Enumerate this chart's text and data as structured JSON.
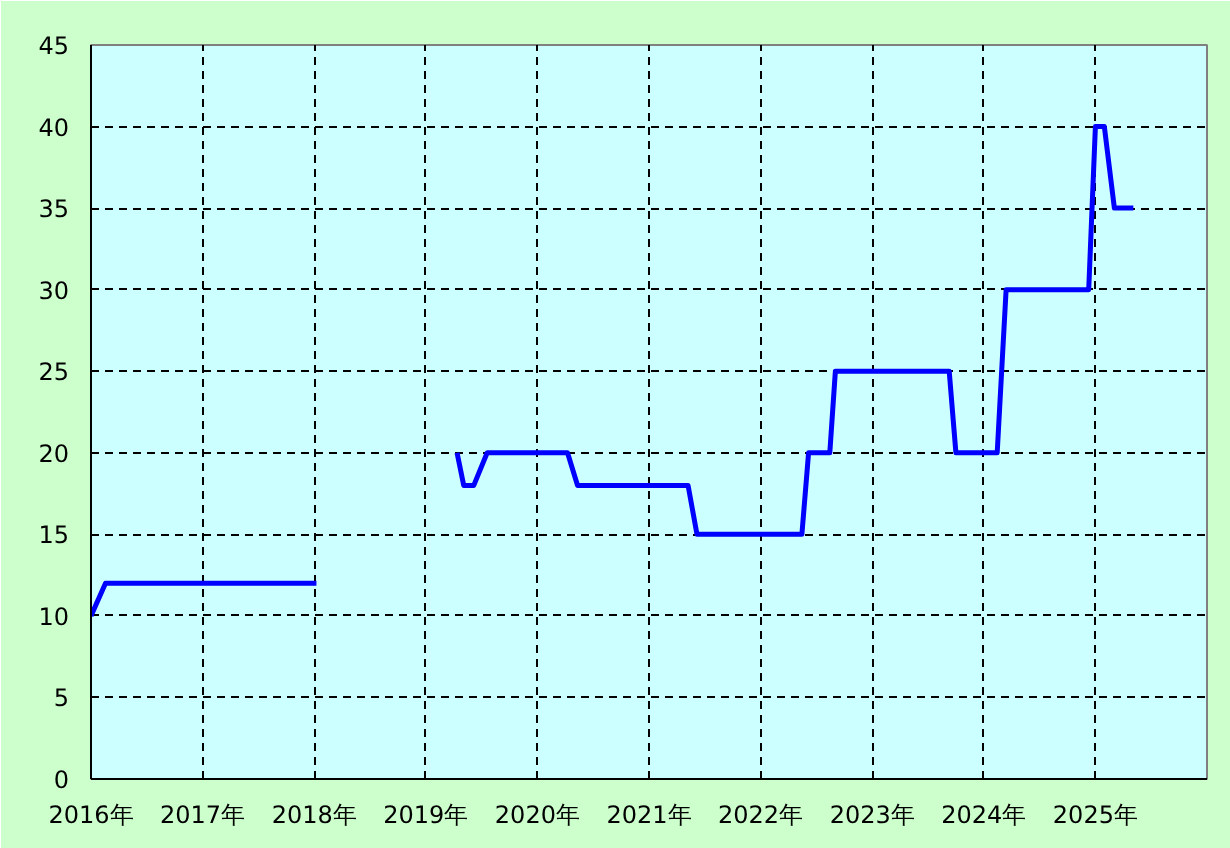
{
  "chart_data": {
    "type": "line",
    "x": [
      2016.0,
      2016.13,
      2018.02,
      2018.5,
      2019.28,
      2019.34,
      2019.43,
      2019.55,
      2020.27,
      2020.36,
      2021.35,
      2021.43,
      2022.37,
      2022.43,
      2022.62,
      2022.67,
      2023.69,
      2023.75,
      2024.12,
      2024.2,
      2024.94,
      2025.0,
      2025.08,
      2025.17,
      2025.34
    ],
    "series": [
      {
        "color": "#0000ff",
        "values": [
          10,
          12,
          12,
          null,
          20,
          18,
          18,
          20,
          20,
          18,
          18,
          15,
          15,
          20,
          20,
          25,
          25,
          20,
          20,
          30,
          30,
          40,
          40,
          35,
          35
        ]
      }
    ],
    "xlim": [
      2016,
      2026
    ],
    "xticks": [
      {
        "value": 2016,
        "label": "2016年"
      },
      {
        "value": 2017,
        "label": "2017年"
      },
      {
        "value": 2018,
        "label": "2018年"
      },
      {
        "value": 2019,
        "label": "2019年"
      },
      {
        "value": 2020,
        "label": "2020年"
      },
      {
        "value": 2021,
        "label": "2021年"
      },
      {
        "value": 2022,
        "label": "2022年"
      },
      {
        "value": 2023,
        "label": "2023年"
      },
      {
        "value": 2024,
        "label": "2024年"
      },
      {
        "value": 2025,
        "label": "2025年"
      }
    ],
    "ylim": [
      0,
      45
    ],
    "yticks": [
      0,
      5,
      10,
      15,
      20,
      25,
      30,
      35,
      40,
      45
    ],
    "grid": true,
    "line_style": "solid"
  }
}
